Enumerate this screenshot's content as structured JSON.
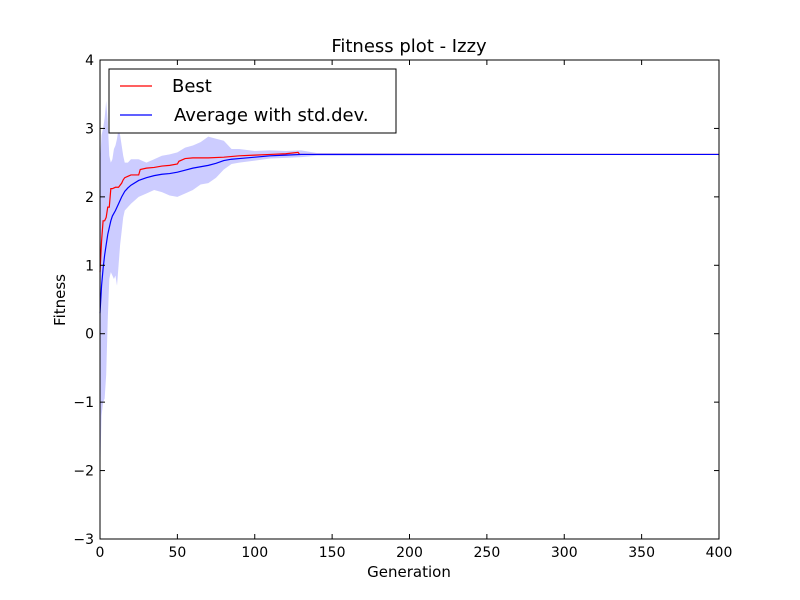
{
  "chart_data": {
    "type": "line",
    "title": "Fitness plot - Izzy",
    "xlabel": "Generation",
    "ylabel": "Fitness",
    "xlim": [
      0,
      400
    ],
    "ylim": [
      -3,
      4
    ],
    "xticks": [
      0,
      50,
      100,
      150,
      200,
      250,
      300,
      350,
      400
    ],
    "yticks": [
      -3,
      -2,
      -1,
      0,
      1,
      2,
      3,
      4
    ],
    "x_tick_labels": [
      "0",
      "50",
      "100",
      "150",
      "200",
      "250",
      "300",
      "350",
      "400"
    ],
    "y_tick_labels": [
      "−3",
      "−2",
      "−1",
      "0",
      "1",
      "2",
      "3",
      "4"
    ],
    "grid": false,
    "legend_position": "top-left",
    "series": [
      {
        "name": "Best",
        "color": "#ff0000",
        "x": [
          0,
          1,
          2,
          3,
          4,
          5,
          6,
          7,
          8,
          10,
          12,
          14,
          15,
          16,
          18,
          20,
          25,
          26,
          30,
          35,
          40,
          45,
          50,
          51,
          55,
          60,
          70,
          80,
          90,
          100,
          110,
          120,
          128,
          129,
          400
        ],
        "y": [
          0.9,
          1.35,
          1.65,
          1.65,
          1.7,
          1.85,
          1.85,
          2.12,
          2.12,
          2.14,
          2.14,
          2.2,
          2.25,
          2.28,
          2.3,
          2.32,
          2.32,
          2.4,
          2.42,
          2.43,
          2.45,
          2.46,
          2.48,
          2.52,
          2.56,
          2.57,
          2.57,
          2.58,
          2.6,
          2.61,
          2.62,
          2.63,
          2.65,
          2.62,
          2.62
        ]
      },
      {
        "name": "Average with std.dev.",
        "color": "#0000ff",
        "x": [
          0,
          1,
          2,
          3,
          4,
          5,
          6,
          7,
          8,
          10,
          12,
          14,
          16,
          18,
          20,
          25,
          30,
          35,
          40,
          45,
          50,
          55,
          60,
          65,
          70,
          75,
          80,
          85,
          90,
          100,
          110,
          120,
          130,
          400
        ],
        "y": [
          0.3,
          0.7,
          0.95,
          1.15,
          1.3,
          1.45,
          1.55,
          1.65,
          1.72,
          1.8,
          1.9,
          2.0,
          2.08,
          2.13,
          2.17,
          2.24,
          2.28,
          2.31,
          2.33,
          2.34,
          2.36,
          2.39,
          2.42,
          2.44,
          2.46,
          2.49,
          2.53,
          2.55,
          2.56,
          2.58,
          2.6,
          2.61,
          2.62,
          2.62
        ]
      }
    ],
    "std_band": {
      "color": "#aaaaff",
      "x": [
        0,
        1,
        2,
        3,
        4,
        5,
        6,
        7,
        8,
        9,
        10,
        11,
        12,
        13,
        14,
        15,
        16,
        18,
        20,
        25,
        30,
        35,
        40,
        45,
        50,
        55,
        60,
        65,
        70,
        75,
        80,
        85,
        90,
        100,
        110,
        120,
        130,
        140,
        400
      ],
      "upper": [
        2.5,
        2.9,
        3.0,
        3.15,
        3.4,
        3.1,
        2.6,
        2.5,
        2.55,
        2.7,
        2.75,
        2.85,
        3.0,
        2.9,
        2.75,
        2.6,
        2.5,
        2.5,
        2.55,
        2.55,
        2.5,
        2.55,
        2.6,
        2.62,
        2.65,
        2.72,
        2.75,
        2.8,
        2.88,
        2.85,
        2.82,
        2.7,
        2.7,
        2.67,
        2.68,
        2.67,
        2.68,
        2.64,
        2.62
      ],
      "lower": [
        -2.1,
        -1.2,
        -1.0,
        -0.95,
        -0.6,
        0.2,
        0.8,
        0.9,
        0.85,
        0.8,
        0.85,
        0.7,
        1.0,
        1.3,
        1.5,
        1.7,
        1.8,
        1.85,
        1.9,
        2.0,
        2.05,
        2.1,
        2.07,
        2.02,
        2.0,
        2.05,
        2.1,
        2.18,
        2.2,
        2.28,
        2.4,
        2.48,
        2.5,
        2.53,
        2.56,
        2.57,
        2.58,
        2.6,
        2.62
      ]
    }
  }
}
